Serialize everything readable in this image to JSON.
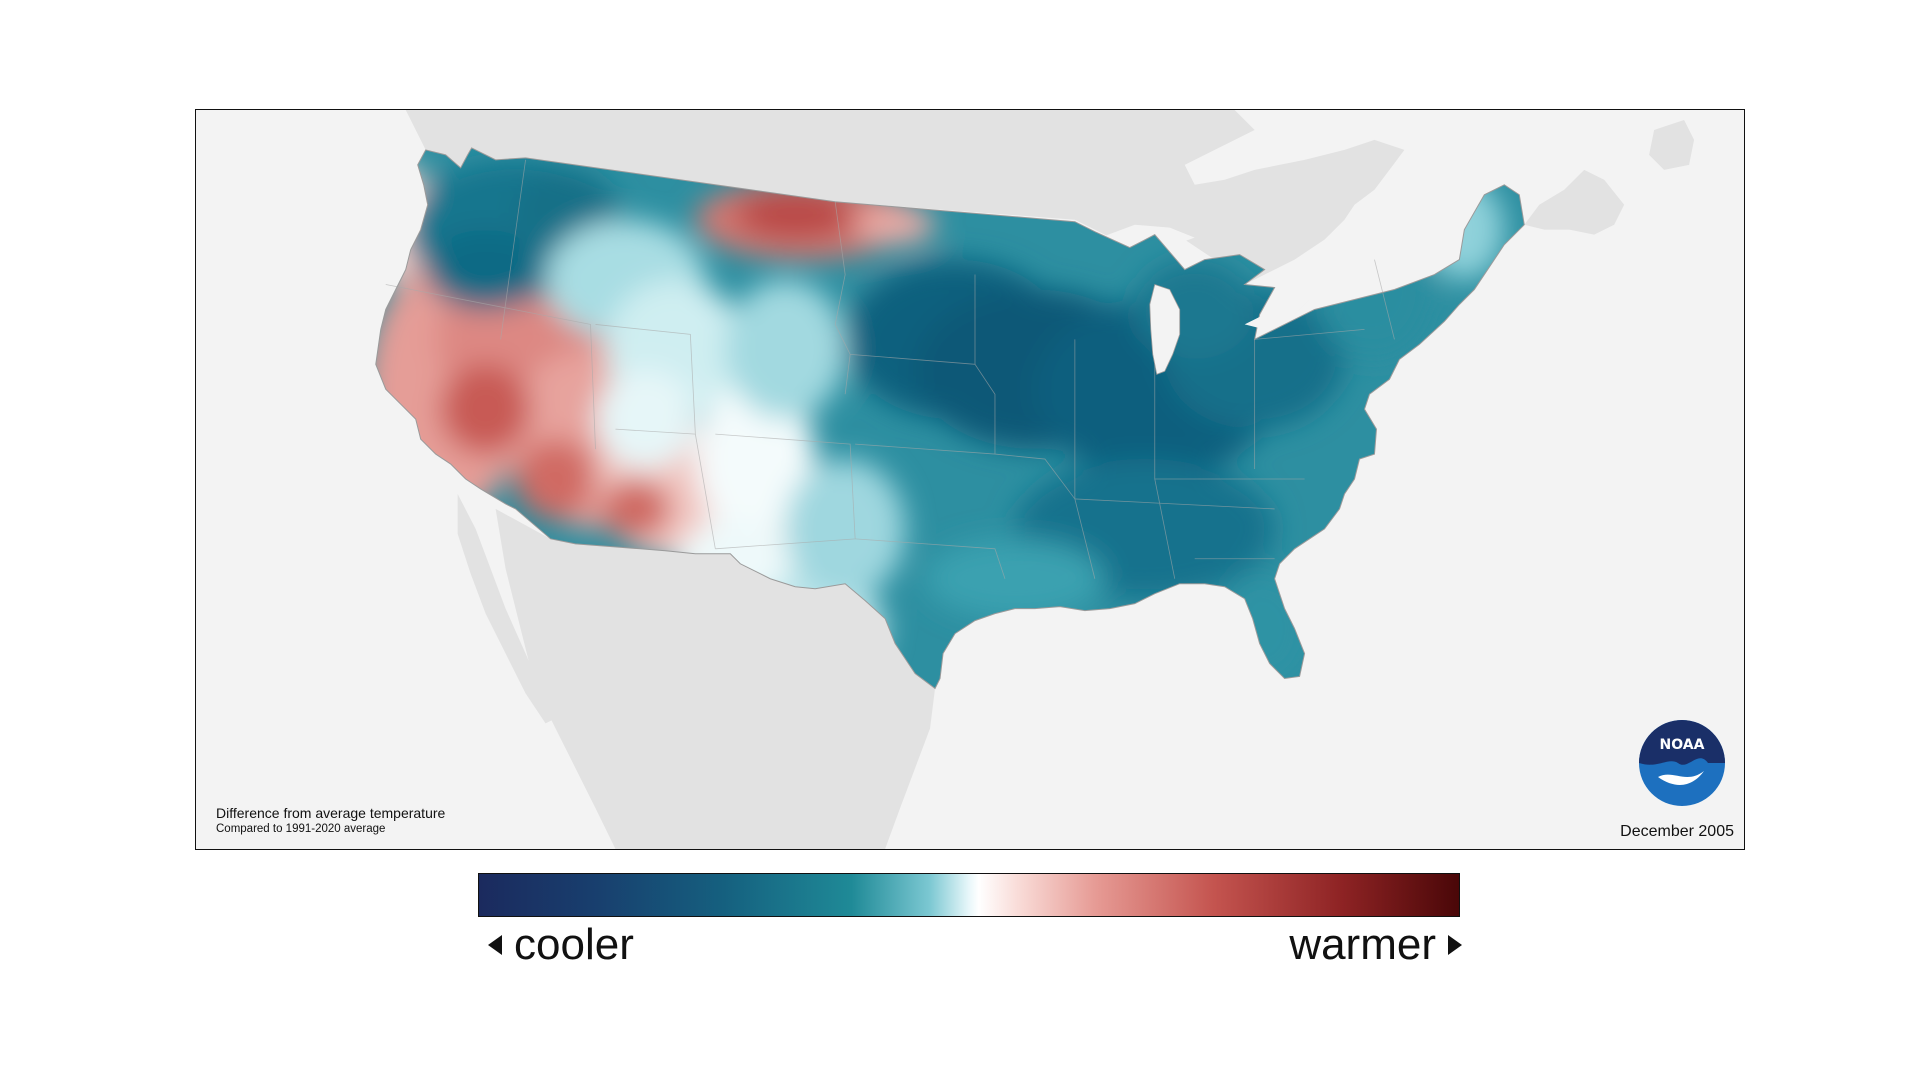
{
  "map": {
    "caption_title": "Difference from average temperature",
    "caption_subtitle": "Compared to 1991-2020 average",
    "date": "December 2005",
    "logo_text": "NOAA"
  },
  "legend": {
    "cooler_label": "cooler",
    "warmer_label": "warmer",
    "colors": {
      "coolest": "#1b2a5e",
      "cool": "#15607f",
      "neutral": "#ffffff",
      "warm": "#c4544f",
      "warmest": "#4a0708"
    }
  },
  "regions": {
    "northwest_interior": "cooler",
    "west_coast_and_southwest": "warmer",
    "northern_plains_north_dakota": "warmer",
    "midwest_east_south": "cooler",
    "southern_plains": "slightly cooler"
  }
}
